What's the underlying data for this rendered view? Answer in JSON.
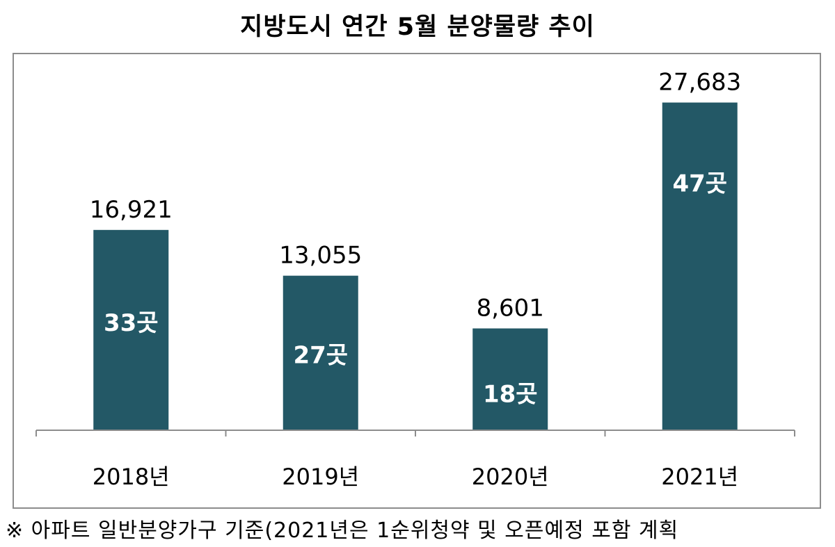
{
  "chart_data": {
    "type": "bar",
    "title": "지방도시 연간 5월 분양물량 추이",
    "categories": [
      "2018년",
      "2019년",
      "2020년",
      "2021년"
    ],
    "values": [
      16921,
      13055,
      8601,
      27683
    ],
    "value_labels": [
      "16,921",
      "13,055",
      "8,601",
      "27,683"
    ],
    "inner_labels": [
      "33곳",
      "27곳",
      "18곳",
      "47곳"
    ],
    "xlabel": "",
    "ylabel": "",
    "ylim": [
      0,
      32000
    ],
    "grid": false,
    "legend": "none",
    "bar_color": "#235866",
    "axis_color": "#8c8c8c"
  },
  "footnote": "※ 아파트 일반분양가구 기준(2021년은 1순위청약 및 오픈예정 포함 계획"
}
